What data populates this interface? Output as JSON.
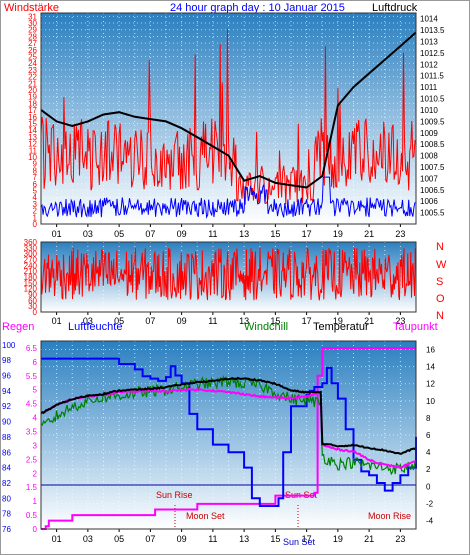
{
  "header": {
    "left": "Windstärke",
    "center": "24 hour graph day : 10 Januar 2015",
    "right": "Luftdruck"
  },
  "wind_direction_labels": [
    "N",
    "W",
    "S",
    "O",
    "N"
  ],
  "bottom_header": {
    "rain": "Regen",
    "humidity": "Luftfeuchte",
    "windchill": "Windchill",
    "temperature": "Temperatur",
    "dewpoint": "Taupunkt"
  },
  "annotations": {
    "sun_rise": "Sun Rise",
    "sun_set": "Sun Set",
    "moon_set": "Moon Set",
    "moon_rise": "Moon Rise",
    "sun_set_axis": "Sun Set"
  },
  "colors": {
    "wind_speed": "#ff0000",
    "wind_gust": "#0000ff",
    "pressure": "#000000",
    "wind_direction": "#ff0000",
    "humidity": "#0000ff",
    "windchill": "#008000",
    "temperature": "#000000",
    "dewpoint": "#ff00ff",
    "rain": "#ff00ff",
    "header_red": "#ff0000",
    "header_blue": "#0000ff",
    "sky_top": "#2a7fc0",
    "sky_bottom": "#ffffff"
  },
  "chart_data": [
    {
      "type": "line",
      "name": "wind_and_pressure",
      "x_tick_labels": [
        "01",
        "03",
        "05",
        "07",
        "09",
        "11",
        "13",
        "15",
        "17",
        "19",
        "21",
        "23"
      ],
      "left_axis": {
        "label": "Windstärke",
        "ticks": [
          0,
          1,
          2,
          3,
          4,
          5,
          6,
          7,
          8,
          9,
          10,
          11,
          12,
          13,
          14,
          15,
          16,
          17,
          18,
          19,
          20,
          21,
          22,
          23,
          24,
          25,
          26,
          27,
          28,
          29,
          30,
          31
        ],
        "ylim": [
          0,
          31.5
        ]
      },
      "right_axis": {
        "label": "Luftdruck",
        "ticks": [
          "1005.5",
          "1006",
          "1006.5",
          "1007",
          "1007.5",
          "1008",
          "1008.5",
          "1009",
          "1009.5",
          "1010",
          "1010.5",
          "1011",
          "1011.5",
          "1012",
          "1012.5",
          "1013",
          "1013.5",
          "1014"
        ],
        "ylim": [
          1005,
          1014.25
        ]
      },
      "series": [
        {
          "name": "Luftdruck",
          "x": [
            0,
            1,
            2,
            3,
            4,
            5,
            6,
            7,
            8,
            9,
            10,
            11,
            12,
            13,
            14,
            15,
            16,
            17,
            18,
            19,
            20,
            21,
            22,
            23,
            24
          ],
          "values": [
            1010.0,
            1009.5,
            1009.3,
            1009.5,
            1009.8,
            1009.9,
            1009.7,
            1009.6,
            1009.5,
            1009.2,
            1008.8,
            1008.4,
            1008.0,
            1006.9,
            1007.1,
            1006.8,
            1006.7,
            1006.6,
            1007.1,
            1010.2,
            1011.0,
            1011.6,
            1012.2,
            1012.8,
            1013.4
          ]
        }
      ],
      "wind_speed_band": [
        5,
        16
      ],
      "wind_gust_band": [
        1,
        4
      ]
    },
    {
      "type": "line",
      "name": "wind_direction",
      "ylim": [
        0,
        360
      ],
      "y_ticks": [
        0,
        30,
        60,
        90,
        120,
        150,
        180,
        210,
        240,
        270,
        300,
        330,
        360
      ],
      "x_tick_labels": [
        "01",
        "03",
        "05",
        "07",
        "09",
        "11",
        "13",
        "15",
        "17",
        "19",
        "21",
        "23"
      ],
      "value_band": [
        60,
        330
      ]
    },
    {
      "type": "line",
      "name": "humidity_temperature",
      "x_tick_labels": [
        "01",
        "03",
        "05",
        "07",
        "09",
        "11",
        "13",
        "15",
        "17",
        "19",
        "21",
        "23"
      ],
      "rain_axis": {
        "label": "Regen",
        "ticks": [
          "0",
          "0.5",
          "1",
          "1.5",
          "2",
          "2.5",
          "3",
          "3.5",
          "4",
          "4.5",
          "5",
          "5.5",
          "6",
          "6.5"
        ],
        "ylim": [
          0,
          6.75
        ]
      },
      "humidity_axis": {
        "label": "Luftfeuchte",
        "ticks": [
          "76",
          "78",
          "80",
          "82",
          "84",
          "86",
          "88",
          "90",
          "92",
          "94",
          "96",
          "98",
          "100"
        ],
        "ylim": [
          76,
          100.5
        ]
      },
      "temp_axis": {
        "ticks": [
          "-4",
          "-2",
          "0",
          "2",
          "4",
          "6",
          "8",
          "10",
          "12",
          "14",
          "16"
        ],
        "ylim": [
          -5,
          17
        ]
      },
      "series": [
        {
          "name": "Luftfeuchte",
          "x": [
            0,
            0.5,
            3,
            4.6,
            5,
            6,
            6.5,
            7,
            7.5,
            8,
            8.3,
            8.6,
            9,
            9.5,
            10,
            11,
            12,
            13,
            13.5,
            14,
            14.5,
            15,
            15.2,
            15.5,
            16,
            17,
            17.2,
            17.5,
            18,
            18.3,
            18.6,
            19,
            19.5,
            20,
            20.5,
            21,
            21.5,
            22,
            22.5,
            23,
            23.5,
            24
          ],
          "values": [
            98.2,
            98.2,
            98.2,
            98.2,
            97.5,
            96.8,
            95.9,
            95.6,
            95.3,
            95.8,
            97.2,
            96.0,
            95.0,
            91.0,
            89.0,
            87.0,
            86.0,
            84.0,
            80.0,
            79.0,
            79.0,
            79.0,
            80.0,
            86.0,
            92.0,
            93.5,
            94.0,
            94.5,
            95.0,
            97.0,
            95.0,
            93.0,
            89.0,
            85.0,
            83.5,
            83.0,
            82.0,
            81.0,
            82.0,
            83.0,
            84.0,
            88.0
          ]
        },
        {
          "name": "Temperatur",
          "x": [
            0,
            1,
            2,
            3,
            4,
            5,
            6,
            7,
            8,
            9,
            10,
            11,
            12,
            13,
            14,
            15,
            16,
            17,
            17.9,
            18,
            19,
            20,
            21,
            22,
            23,
            24
          ],
          "values": [
            8.5,
            9.5,
            10.2,
            10.6,
            10.8,
            11.2,
            11.3,
            11.4,
            11.6,
            11.9,
            12.2,
            12.3,
            12.6,
            12.6,
            12.4,
            12.0,
            11.2,
            11.0,
            11.0,
            5.0,
            4.7,
            4.8,
            4.5,
            4.2,
            3.8,
            4.5
          ]
        },
        {
          "name": "Windchill",
          "x": [
            0,
            1,
            2,
            3,
            4,
            5,
            6,
            7,
            8,
            9,
            10,
            11,
            12,
            13,
            14,
            15,
            16,
            17,
            17.9,
            18,
            19,
            20,
            21,
            22,
            23,
            24
          ],
          "values": [
            6.8,
            8.2,
            9.3,
            10.0,
            10.4,
            10.6,
            10.9,
            11.1,
            11.3,
            11.6,
            12.0,
            12.0,
            12.3,
            12.0,
            11.8,
            11.0,
            10.2,
            10.0,
            9.8,
            3.5,
            2.6,
            2.8,
            2.4,
            2.2,
            2.0,
            2.6
          ]
        },
        {
          "name": "Taupunkt",
          "x": [
            0,
            1,
            2,
            3,
            4,
            5,
            6,
            7,
            8,
            9,
            10,
            11,
            12,
            13,
            14,
            15,
            16,
            17,
            17.9,
            18,
            19,
            20,
            21,
            22,
            23,
            24
          ],
          "values": [
            8.5,
            9.5,
            10.2,
            10.5,
            10.7,
            11.0,
            11.1,
            11.2,
            11.1,
            11.3,
            11.3,
            11.2,
            11.0,
            10.8,
            10.5,
            10.4,
            10.3,
            10.5,
            11.0,
            4.8,
            4.3,
            4.1,
            3.1,
            2.5,
            2.2,
            2.9
          ]
        },
        {
          "name": "Regen",
          "x": [
            0,
            0.3,
            0.5,
            1.5,
            2,
            7,
            7.3,
            9.5,
            10,
            14.5,
            15,
            17.5,
            17.7,
            18,
            24
          ],
          "values": [
            0,
            0.1,
            0.3,
            0.3,
            0.5,
            0.5,
            0.7,
            0.7,
            0.9,
            0.9,
            1.2,
            1.3,
            5.5,
            6.5,
            6.5
          ]
        }
      ]
    }
  ]
}
